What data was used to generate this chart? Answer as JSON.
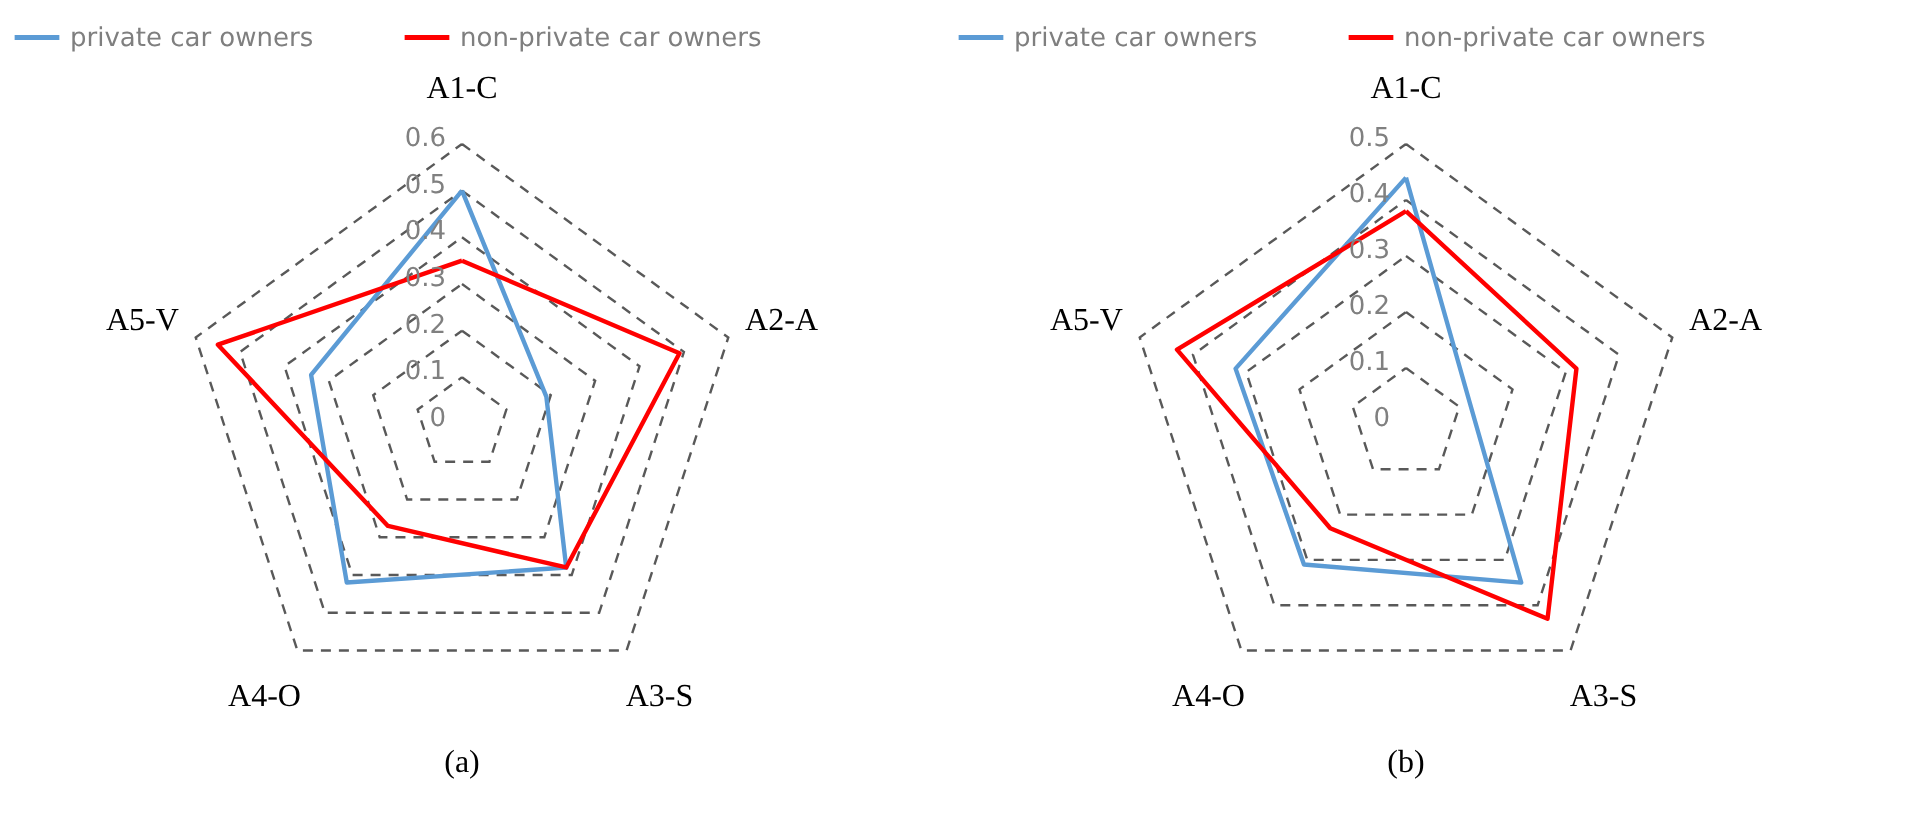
{
  "chart_data": [
    {
      "type": "radar",
      "categories": [
        "A1-C",
        "A2-A",
        "A3-S",
        "A4-O",
        "A5-V"
      ],
      "ylim": [
        0,
        0.6
      ],
      "yticks": [
        0,
        0.1,
        0.2,
        0.3,
        0.4,
        0.5,
        0.6
      ],
      "grid": true,
      "legend": "top",
      "marker": "none",
      "annotations": [
        "(a)"
      ],
      "series": [
        {
          "name": "private car owners",
          "color": "#5b9bd5",
          "values": [
            0.5,
            0.19,
            0.38,
            0.42,
            0.34
          ]
        },
        {
          "name": "non-private car owners",
          "color": "#ff0000",
          "values": [
            0.35,
            0.49,
            0.38,
            0.27,
            0.55
          ]
        }
      ]
    },
    {
      "type": "radar",
      "categories": [
        "A1-C",
        "A2-A",
        "A3-S",
        "A4-O",
        "A5-V"
      ],
      "ylim": [
        0,
        0.5
      ],
      "yticks": [
        0,
        0.1,
        0.2,
        0.3,
        0.4,
        0.5
      ],
      "grid": true,
      "legend": "top",
      "marker": "none",
      "annotations": [
        "(b)"
      ],
      "series": [
        {
          "name": "private car owners",
          "color": "#5b9bd5",
          "values": [
            0.44,
            0.12,
            0.35,
            0.31,
            0.32
          ]
        },
        {
          "name": "non-private car owners",
          "color": "#ff0000",
          "values": [
            0.38,
            0.32,
            0.43,
            0.23,
            0.43
          ]
        }
      ]
    }
  ]
}
